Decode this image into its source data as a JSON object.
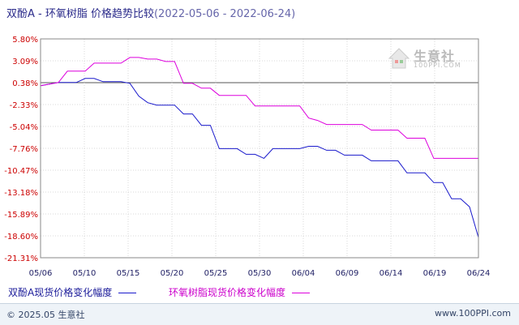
{
  "title": {
    "main": "双酚A - 环氧树脂 价格趋势比较",
    "range": "(2022-05-06 - 2022-06-24)"
  },
  "watermark": {
    "text": "生意社",
    "sub": "100PPI.COM",
    "icon": "house-logo-icon"
  },
  "legend": {
    "series1": "双酚A现货价格变化幅度",
    "series2": "环氧树脂现货价格变化幅度"
  },
  "footer": {
    "copyright": "© 2025.05 生意社",
    "url": "www.100PPI.com"
  },
  "colors": {
    "series1": "#1a1acc",
    "series2": "#dd00dd",
    "ytick": "#cc0000",
    "grid": "#d8d8d8",
    "zero": "#555555"
  },
  "chart_data": {
    "type": "line",
    "title": "双酚A - 环氧树脂 价格趋势比较",
    "xlabel": "",
    "ylabel": "",
    "x_ticks": [
      "05/06",
      "05/10",
      "05/15",
      "05/20",
      "05/25",
      "05/30",
      "06/04",
      "06/09",
      "06/14",
      "06/19",
      "06/24"
    ],
    "y_ticks": [
      "5.80%",
      "3.09%",
      "0.38%",
      "-2.33%",
      "-5.04%",
      "-7.76%",
      "-10.47%",
      "-13.18%",
      "-15.89%",
      "-18.60%",
      "-21.31%"
    ],
    "ylim": [
      -21.31,
      5.8
    ],
    "xlim": [
      "2022-05-06",
      "2022-06-24"
    ],
    "grid": true,
    "legend_position": "bottom",
    "series": [
      {
        "name": "双酚A现货价格变化幅度",
        "points": [
          [
            "05-06",
            0.0
          ],
          [
            "05-07",
            0.2
          ],
          [
            "05-08",
            0.4
          ],
          [
            "05-09",
            0.4
          ],
          [
            "05-10",
            0.4
          ],
          [
            "05-11",
            0.9
          ],
          [
            "05-12",
            0.9
          ],
          [
            "05-13",
            0.5
          ],
          [
            "05-14",
            0.5
          ],
          [
            "05-15",
            0.5
          ],
          [
            "05-16",
            0.3
          ],
          [
            "05-17",
            -1.3
          ],
          [
            "05-18",
            -2.1
          ],
          [
            "05-19",
            -2.4
          ],
          [
            "05-20",
            -2.4
          ],
          [
            "05-21",
            -2.4
          ],
          [
            "05-22",
            -3.5
          ],
          [
            "05-23",
            -3.5
          ],
          [
            "05-24",
            -4.9
          ],
          [
            "05-25",
            -4.9
          ],
          [
            "05-26",
            -7.8
          ],
          [
            "05-27",
            -7.8
          ],
          [
            "05-28",
            -7.8
          ],
          [
            "05-29",
            -8.5
          ],
          [
            "05-30",
            -8.5
          ],
          [
            "05-31",
            -9.0
          ],
          [
            "06-01",
            -7.8
          ],
          [
            "06-02",
            -7.8
          ],
          [
            "06-03",
            -7.8
          ],
          [
            "06-04",
            -7.8
          ],
          [
            "06-05",
            -7.5
          ],
          [
            "06-06",
            -7.5
          ],
          [
            "06-07",
            -8.0
          ],
          [
            "06-08",
            -8.0
          ],
          [
            "06-09",
            -8.6
          ],
          [
            "06-10",
            -8.6
          ],
          [
            "06-11",
            -8.6
          ],
          [
            "06-12",
            -9.3
          ],
          [
            "06-13",
            -9.3
          ],
          [
            "06-14",
            -9.3
          ],
          [
            "06-15",
            -9.3
          ],
          [
            "06-16",
            -10.8
          ],
          [
            "06-17",
            -10.8
          ],
          [
            "06-18",
            -10.8
          ],
          [
            "06-19",
            -12.0
          ],
          [
            "06-20",
            -12.0
          ],
          [
            "06-21",
            -14.0
          ],
          [
            "06-22",
            -14.0
          ],
          [
            "06-23",
            -15.0
          ],
          [
            "06-24",
            -18.8
          ]
        ]
      },
      {
        "name": "环氧树脂现货价格变化幅度",
        "points": [
          [
            "05-06",
            0.0
          ],
          [
            "05-07",
            0.2
          ],
          [
            "05-08",
            0.4
          ],
          [
            "05-09",
            1.8
          ],
          [
            "05-10",
            1.8
          ],
          [
            "05-11",
            1.8
          ],
          [
            "05-12",
            2.8
          ],
          [
            "05-13",
            2.8
          ],
          [
            "05-14",
            2.8
          ],
          [
            "05-15",
            2.8
          ],
          [
            "05-16",
            3.5
          ],
          [
            "05-17",
            3.5
          ],
          [
            "05-18",
            3.3
          ],
          [
            "05-19",
            3.3
          ],
          [
            "05-20",
            3.0
          ],
          [
            "05-21",
            3.0
          ],
          [
            "05-22",
            0.3
          ],
          [
            "05-23",
            0.3
          ],
          [
            "05-24",
            -0.3
          ],
          [
            "05-25",
            -0.3
          ],
          [
            "05-26",
            -1.2
          ],
          [
            "05-27",
            -1.2
          ],
          [
            "05-28",
            -1.2
          ],
          [
            "05-29",
            -1.2
          ],
          [
            "05-30",
            -2.5
          ],
          [
            "05-31",
            -2.5
          ],
          [
            "06-01",
            -2.5
          ],
          [
            "06-02",
            -2.5
          ],
          [
            "06-03",
            -2.5
          ],
          [
            "06-04",
            -2.5
          ],
          [
            "06-05",
            -4.0
          ],
          [
            "06-06",
            -4.3
          ],
          [
            "06-07",
            -4.8
          ],
          [
            "06-08",
            -4.8
          ],
          [
            "06-09",
            -4.8
          ],
          [
            "06-10",
            -4.8
          ],
          [
            "06-11",
            -4.8
          ],
          [
            "06-12",
            -5.5
          ],
          [
            "06-13",
            -5.5
          ],
          [
            "06-14",
            -5.5
          ],
          [
            "06-15",
            -5.5
          ],
          [
            "06-16",
            -6.5
          ],
          [
            "06-17",
            -6.5
          ],
          [
            "06-18",
            -6.5
          ],
          [
            "06-19",
            -9.0
          ],
          [
            "06-20",
            -9.0
          ],
          [
            "06-21",
            -9.0
          ],
          [
            "06-22",
            -9.0
          ],
          [
            "06-23",
            -9.0
          ],
          [
            "06-24",
            -9.0
          ]
        ]
      }
    ]
  }
}
